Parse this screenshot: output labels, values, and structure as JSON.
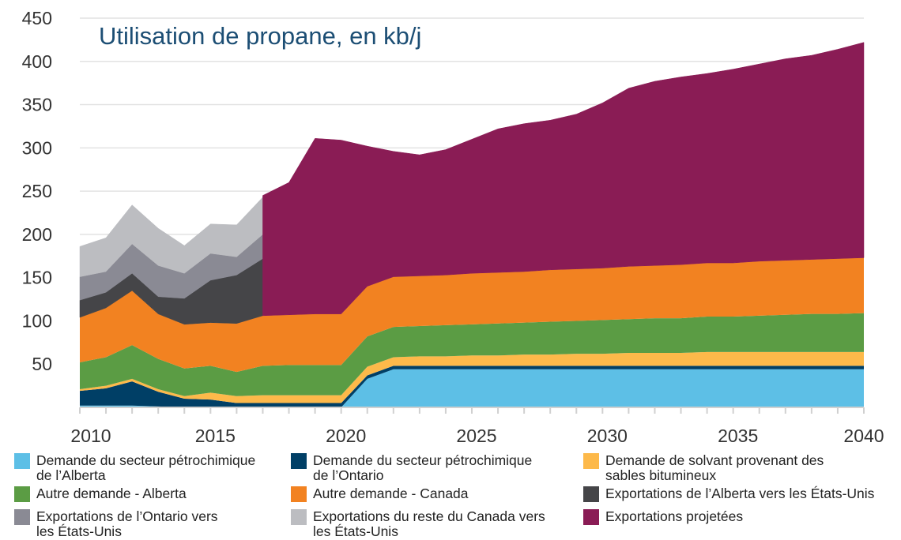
{
  "chart_data": {
    "type": "area",
    "stacked": true,
    "title": "Utilisation de propane, en kb/j",
    "xlabel": "",
    "ylabel": "",
    "xlim": [
      2010,
      2040
    ],
    "ylim": [
      0,
      450
    ],
    "yticks": [
      50,
      100,
      150,
      200,
      250,
      300,
      350,
      400,
      450
    ],
    "xticks": [
      2010,
      2015,
      2020,
      2025,
      2030,
      2035,
      2040
    ],
    "grid": true,
    "legend_position": "bottom",
    "x": [
      2010,
      2011,
      2012,
      2013,
      2014,
      2015,
      2016,
      2017,
      2018,
      2019,
      2020,
      2021,
      2022,
      2023,
      2024,
      2025,
      2026,
      2027,
      2028,
      2029,
      2030,
      2031,
      2032,
      2033,
      2034,
      2035,
      2036,
      2037,
      2038,
      2039,
      2040
    ],
    "series": [
      {
        "name": "Demande du secteur pétrochimique de l'Alberta",
        "color": "#5dbfe6",
        "values": [
          2,
          2,
          2,
          1,
          0,
          0,
          0,
          0,
          0,
          0,
          0,
          33,
          44,
          44,
          44,
          44,
          44,
          44,
          44,
          44,
          44,
          44,
          44,
          44,
          44,
          44,
          44,
          44,
          44,
          44,
          44
        ]
      },
      {
        "name": "Demande du secteur pétrochimique de l'Ontario",
        "color": "#003f66",
        "values": [
          17,
          20,
          28,
          17,
          10,
          9,
          5,
          5,
          5,
          5,
          5,
          4,
          4,
          4,
          4,
          4,
          4,
          4,
          4,
          4,
          4,
          4,
          4,
          4,
          4,
          4,
          4,
          4,
          4,
          4,
          4
        ]
      },
      {
        "name": "Demande de solvant provenant des sables bitumineux",
        "color": "#fdb94a",
        "values": [
          2,
          3,
          3,
          3,
          3,
          8,
          8,
          9,
          9,
          9,
          9,
          10,
          10,
          11,
          11,
          12,
          12,
          13,
          13,
          14,
          14,
          15,
          15,
          15,
          16,
          16,
          16,
          16,
          16,
          16,
          16
        ]
      },
      {
        "name": "Autre demande - Alberta",
        "color": "#5b9c44",
        "values": [
          31,
          33,
          39,
          35,
          32,
          31,
          28,
          34,
          35,
          35,
          35,
          35,
          35,
          35,
          36,
          36,
          37,
          37,
          38,
          38,
          39,
          39,
          40,
          40,
          41,
          41,
          42,
          43,
          44,
          44,
          45
        ]
      },
      {
        "name": "Autre demande - Canada",
        "color": "#f28221",
        "values": [
          52,
          57,
          63,
          52,
          51,
          50,
          56,
          58,
          58,
          59,
          59,
          58,
          58,
          58,
          58,
          59,
          59,
          59,
          60,
          60,
          60,
          61,
          61,
          62,
          62,
          62,
          63,
          63,
          63,
          64,
          64
        ]
      },
      {
        "name": "Exportations de l'Alberta vers les États-Unis",
        "color": "#454548",
        "values": [
          20,
          18,
          20,
          20,
          30,
          49,
          56,
          66,
          null,
          null,
          null,
          null,
          null,
          null,
          null,
          null,
          null,
          null,
          null,
          null,
          null,
          null,
          null,
          null,
          null,
          null,
          null,
          null,
          null,
          null,
          null
        ]
      },
      {
        "name": "Exportations de l'Ontario vers les États-Unis",
        "color": "#8a8a94",
        "values": [
          27,
          24,
          34,
          36,
          29,
          31,
          21,
          28,
          null,
          null,
          null,
          null,
          null,
          null,
          null,
          null,
          null,
          null,
          null,
          null,
          null,
          null,
          null,
          null,
          null,
          null,
          null,
          null,
          null,
          null,
          null
        ]
      },
      {
        "name": "Exportations du reste du Canada vers les États-Unis",
        "color": "#bcbdc1",
        "values": [
          35,
          39,
          45,
          43,
          32,
          34,
          37,
          43,
          null,
          null,
          null,
          null,
          null,
          null,
          null,
          null,
          null,
          null,
          null,
          null,
          null,
          null,
          null,
          null,
          null,
          null,
          null,
          null,
          null,
          null,
          null
        ]
      },
      {
        "name": "Exportations projetées",
        "color": "#8a1c55",
        "values": [
          null,
          null,
          null,
          null,
          null,
          null,
          null,
          139,
          153,
          203,
          201,
          162,
          145,
          140,
          145,
          155,
          166,
          171,
          173,
          179,
          191,
          206,
          213,
          217,
          219,
          224,
          228,
          233,
          236,
          242,
          249
        ]
      }
    ]
  },
  "legend": {
    "items": [
      {
        "line1": "Demande du secteur pétrochimique",
        "line2": "de l’Alberta",
        "color": "#5dbfe6"
      },
      {
        "line1": "Demande du secteur pétrochimique",
        "line2": "de l’Ontario",
        "color": "#003f66"
      },
      {
        "line1": "Demande de solvant provenant des",
        "line2": "sables bitumineux",
        "color": "#fdb94a"
      },
      {
        "line1": "Autre demande - Alberta",
        "line2": "",
        "color": "#5b9c44"
      },
      {
        "line1": "Autre demande - Canada",
        "line2": "",
        "color": "#f28221"
      },
      {
        "line1": "Exportations de l’Alberta vers les États-Unis",
        "line2": "",
        "color": "#454548"
      },
      {
        "line1": "Exportations de l’Ontario vers",
        "line2": "les États-Unis",
        "color": "#8a8a94"
      },
      {
        "line1": "Exportations du reste du Canada vers",
        "line2": "les États-Unis",
        "color": "#bcbdc1"
      },
      {
        "line1": "Exportations projetées",
        "line2": "",
        "color": "#8a1c55"
      }
    ]
  }
}
